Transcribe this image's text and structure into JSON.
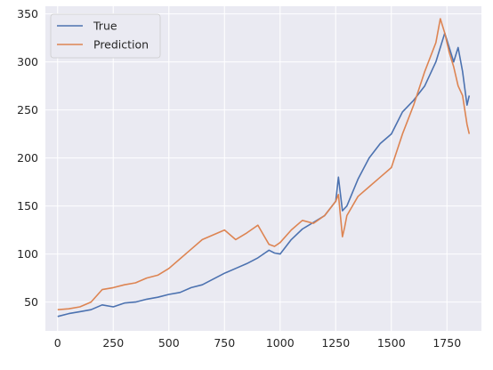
{
  "chart_data": {
    "type": "line",
    "title": "",
    "xlabel": "",
    "ylabel": "",
    "xlim": [
      -55,
      1905
    ],
    "ylim": [
      20,
      358
    ],
    "xticks": [
      0,
      250,
      500,
      750,
      1000,
      1250,
      1500,
      1750
    ],
    "yticks": [
      50,
      100,
      150,
      200,
      250,
      300,
      350
    ],
    "grid": true,
    "background": "#eaeaf2",
    "legend_position": "top-left",
    "series": [
      {
        "name": "True",
        "color": "#4c72b0",
        "x": [
          0,
          50,
          100,
          150,
          200,
          250,
          300,
          350,
          400,
          450,
          500,
          550,
          600,
          650,
          700,
          750,
          800,
          850,
          900,
          925,
          950,
          975,
          1000,
          1050,
          1100,
          1150,
          1200,
          1250,
          1262,
          1280,
          1300,
          1350,
          1400,
          1450,
          1500,
          1550,
          1600,
          1650,
          1700,
          1720,
          1740,
          1760,
          1780,
          1800,
          1820,
          1840,
          1850
        ],
        "y": [
          35,
          38,
          40,
          42,
          47,
          45,
          49,
          50,
          53,
          55,
          58,
          60,
          65,
          68,
          74,
          80,
          85,
          90,
          96,
          100,
          104,
          101,
          100,
          115,
          126,
          133,
          140,
          155,
          180,
          145,
          150,
          178,
          200,
          215,
          225,
          248,
          260,
          275,
          300,
          315,
          330,
          315,
          300,
          315,
          290,
          255,
          265
        ]
      },
      {
        "name": "Prediction",
        "color": "#dd8452",
        "x": [
          0,
          50,
          100,
          150,
          200,
          250,
          300,
          350,
          400,
          450,
          500,
          550,
          600,
          650,
          700,
          750,
          800,
          850,
          900,
          925,
          950,
          975,
          1000,
          1050,
          1100,
          1150,
          1200,
          1250,
          1262,
          1280,
          1290,
          1300,
          1350,
          1400,
          1450,
          1500,
          1550,
          1600,
          1650,
          1700,
          1720,
          1740,
          1760,
          1780,
          1800,
          1820,
          1840,
          1850
        ],
        "y": [
          42,
          43,
          45,
          50,
          63,
          65,
          68,
          70,
          75,
          78,
          85,
          95,
          105,
          115,
          120,
          125,
          115,
          122,
          130,
          120,
          110,
          108,
          112,
          125,
          135,
          132,
          140,
          155,
          162,
          118,
          128,
          140,
          160,
          170,
          180,
          190,
          225,
          255,
          290,
          320,
          345,
          330,
          310,
          295,
          275,
          265,
          235,
          225
        ]
      }
    ]
  }
}
